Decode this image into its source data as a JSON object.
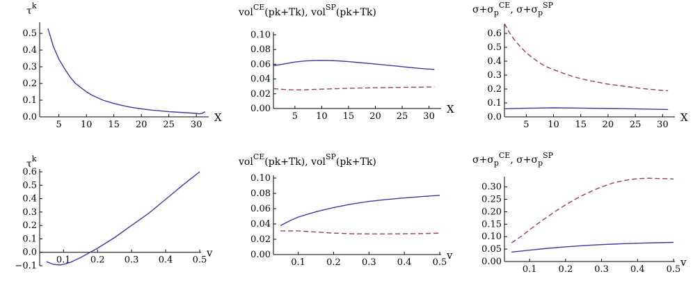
{
  "colors": {
    "solid": "#3a3a9a",
    "dashed": "#9a3a6a",
    "axis": "#000000"
  },
  "chart_data": [
    {
      "type": "line",
      "title": {
        "base": "τ",
        "sup": "k"
      },
      "xlabel": "X",
      "xlim": [
        1.5,
        32
      ],
      "ylim": [
        0,
        0.55
      ],
      "xticks": [
        5,
        10,
        15,
        20,
        25,
        30
      ],
      "xtick_labels": [
        "5",
        "10",
        "15",
        "20",
        "25",
        "30"
      ],
      "yticks": [
        0,
        0.1,
        0.2,
        0.3,
        0.4,
        0.5
      ],
      "ytick_labels": [
        "0.0",
        "0.1",
        "0.2",
        "0.3",
        "0.4",
        "0.5"
      ],
      "series": [
        {
          "style": "solid",
          "x": [
            3,
            4,
            5,
            6,
            7,
            8,
            9,
            10,
            11,
            12,
            13,
            14,
            15,
            16,
            17,
            18,
            19,
            20,
            21,
            22,
            23,
            24,
            25,
            26,
            27,
            28,
            29,
            30,
            30.5,
            31,
            31.3,
            31.6
          ],
          "y": [
            0.53,
            0.42,
            0.345,
            0.29,
            0.24,
            0.2,
            0.175,
            0.15,
            0.13,
            0.115,
            0.1,
            0.09,
            0.08,
            0.072,
            0.065,
            0.058,
            0.053,
            0.048,
            0.044,
            0.04,
            0.037,
            0.034,
            0.031,
            0.029,
            0.027,
            0.025,
            0.023,
            0.021,
            0.018,
            0.02,
            0.026,
            0.03
          ]
        }
      ]
    },
    {
      "type": "line",
      "title": {
        "a": "vol",
        "a_sup": "CE",
        "a_sub": "(pk+Tk), ",
        "b": "vol",
        "b_sup": "SP",
        "b_sub": "(pk+Tk)"
      },
      "xlabel": "X",
      "xlim": [
        1,
        32
      ],
      "ylim": [
        0,
        0.1
      ],
      "xticks": [
        5,
        10,
        15,
        20,
        25,
        30
      ],
      "xtick_labels": [
        "5",
        "10",
        "15",
        "20",
        "25",
        "30"
      ],
      "yticks": [
        0,
        0.02,
        0.04,
        0.06,
        0.08,
        0.1
      ],
      "ytick_labels": [
        "0.00",
        "0.02",
        "0.04",
        "0.06",
        "0.08",
        "0.10"
      ],
      "series": [
        {
          "style": "solid",
          "x": [
            1,
            3,
            5,
            7,
            9,
            10,
            11,
            13,
            15,
            17,
            19,
            21,
            23,
            25,
            27,
            29,
            31
          ],
          "y": [
            0.058,
            0.0605,
            0.063,
            0.0645,
            0.0652,
            0.0653,
            0.0652,
            0.0646,
            0.0636,
            0.0623,
            0.061,
            0.0596,
            0.0582,
            0.0568,
            0.0553,
            0.054,
            0.053
          ]
        },
        {
          "style": "dashed",
          "x": [
            1,
            3,
            5,
            7,
            9,
            11,
            13,
            15,
            17,
            19,
            21,
            23,
            25,
            27,
            29,
            31
          ],
          "y": [
            0.027,
            0.0258,
            0.0253,
            0.0255,
            0.026,
            0.0265,
            0.027,
            0.0274,
            0.0277,
            0.028,
            0.0283,
            0.0285,
            0.0287,
            0.0289,
            0.029,
            0.0292
          ]
        }
      ]
    },
    {
      "type": "line",
      "title": {
        "a": "σ+σ",
        "a_sub": "p",
        "a_sup": "CE",
        "sep": ",  ",
        "b": "σ+σ",
        "b_sub": "p",
        "b_sup": "SP"
      },
      "xlabel": "X",
      "xlim": [
        1,
        32
      ],
      "ylim": [
        0,
        0.65
      ],
      "xticks": [
        5,
        10,
        15,
        20,
        25,
        30
      ],
      "xtick_labels": [
        "5",
        "10",
        "15",
        "20",
        "25",
        "30"
      ],
      "yticks": [
        0,
        0.1,
        0.2,
        0.3,
        0.4,
        0.5,
        0.6
      ],
      "ytick_labels": [
        "0.0",
        "0.1",
        "0.2",
        "0.3",
        "0.4",
        "0.5",
        "0.6"
      ],
      "series": [
        {
          "style": "solid",
          "x": [
            1,
            5,
            10,
            15,
            20,
            25,
            31
          ],
          "y": [
            0.058,
            0.062,
            0.065,
            0.063,
            0.06,
            0.057,
            0.053
          ]
        },
        {
          "style": "dashed",
          "x": [
            1,
            2,
            3,
            4,
            5,
            6,
            7,
            8,
            9,
            10,
            12,
            14,
            16,
            18,
            20,
            22,
            24,
            26,
            28,
            30,
            31
          ],
          "y": [
            0.67,
            0.6,
            0.545,
            0.5,
            0.46,
            0.43,
            0.4,
            0.375,
            0.355,
            0.34,
            0.31,
            0.285,
            0.265,
            0.25,
            0.235,
            0.225,
            0.215,
            0.205,
            0.197,
            0.19,
            0.188
          ]
        }
      ]
    },
    {
      "type": "line",
      "title": {
        "base": "τ",
        "sup": "k"
      },
      "xlabel": "v",
      "xlim": [
        0.03,
        0.5
      ],
      "ylim": [
        -0.1,
        0.6
      ],
      "xticks": [
        0.1,
        0.2,
        0.3,
        0.4,
        0.5
      ],
      "xtick_labels": [
        "0.1",
        "0.2",
        "0.3",
        "0.4",
        "0.5"
      ],
      "yticks": [
        -0.1,
        0,
        0.1,
        0.2,
        0.3,
        0.4,
        0.5,
        0.6
      ],
      "ytick_labels": [
        "−0.1",
        "0.0",
        "0.1",
        "0.2",
        "0.3",
        "0.4",
        "0.5",
        "0.6"
      ],
      "series": [
        {
          "style": "solid",
          "x": [
            0.05,
            0.07,
            0.09,
            0.1,
            0.12,
            0.15,
            0.2,
            0.25,
            0.3,
            0.35,
            0.4,
            0.45,
            0.5
          ],
          "y": [
            -0.07,
            -0.09,
            -0.095,
            -0.09,
            -0.075,
            -0.04,
            0.03,
            0.11,
            0.2,
            0.29,
            0.395,
            0.5,
            0.6
          ]
        }
      ]
    },
    {
      "type": "line",
      "title": {
        "a": "vol",
        "a_sup": "CE",
        "a_sub": "(pk+Tk), ",
        "b": "vol",
        "b_sup": "SP",
        "b_sub": "(pk+Tk)"
      },
      "xlabel": "v",
      "xlim": [
        0.03,
        0.5
      ],
      "ylim": [
        0,
        0.1
      ],
      "xticks": [
        0.1,
        0.2,
        0.3,
        0.4,
        0.5
      ],
      "xtick_labels": [
        "0.1",
        "0.2",
        "0.3",
        "0.4",
        "0.5"
      ],
      "yticks": [
        0,
        0.02,
        0.04,
        0.06,
        0.08,
        0.1
      ],
      "ytick_labels": [
        "0.00",
        "0.02",
        "0.04",
        "0.06",
        "0.08",
        "0.10"
      ],
      "series": [
        {
          "style": "solid",
          "x": [
            0.05,
            0.08,
            0.1,
            0.15,
            0.2,
            0.25,
            0.3,
            0.35,
            0.4,
            0.45,
            0.5
          ],
          "y": [
            0.038,
            0.045,
            0.049,
            0.056,
            0.0615,
            0.066,
            0.0695,
            0.072,
            0.074,
            0.0758,
            0.0775
          ]
        },
        {
          "style": "dashed",
          "x": [
            0.05,
            0.1,
            0.15,
            0.2,
            0.25,
            0.3,
            0.35,
            0.4,
            0.45,
            0.5
          ],
          "y": [
            0.031,
            0.031,
            0.0295,
            0.028,
            0.0272,
            0.027,
            0.027,
            0.0272,
            0.0275,
            0.028
          ]
        }
      ]
    },
    {
      "type": "line",
      "title": {
        "a": "σ+σ",
        "a_sub": "p",
        "a_sup": "CE",
        "sep": ",  ",
        "b": "σ+σ",
        "b_sub": "p",
        "b_sup": "SP"
      },
      "xlabel": "v",
      "xlim": [
        0.03,
        0.5
      ],
      "ylim": [
        0,
        0.33
      ],
      "xticks": [
        0.1,
        0.2,
        0.3,
        0.4,
        0.5
      ],
      "xtick_labels": [
        "0.1",
        "0.2",
        "0.3",
        "0.4",
        "0.5"
      ],
      "yticks": [
        0,
        0.05,
        0.1,
        0.15,
        0.2,
        0.25,
        0.3
      ],
      "ytick_labels": [
        "0.00",
        "0.05",
        "0.10",
        "0.15",
        "0.20",
        "0.25",
        "0.30"
      ],
      "series": [
        {
          "style": "solid",
          "x": [
            0.05,
            0.1,
            0.15,
            0.2,
            0.25,
            0.3,
            0.35,
            0.4,
            0.45,
            0.5
          ],
          "y": [
            0.038,
            0.046,
            0.053,
            0.059,
            0.064,
            0.068,
            0.071,
            0.0735,
            0.0755,
            0.077
          ]
        },
        {
          "style": "dashed",
          "x": [
            0.05,
            0.08,
            0.1,
            0.13,
            0.15,
            0.18,
            0.2,
            0.23,
            0.25,
            0.28,
            0.3,
            0.33,
            0.35,
            0.38,
            0.4,
            0.43,
            0.45,
            0.48,
            0.5
          ],
          "y": [
            0.075,
            0.105,
            0.128,
            0.16,
            0.18,
            0.21,
            0.228,
            0.253,
            0.268,
            0.288,
            0.3,
            0.315,
            0.322,
            0.33,
            0.333,
            0.335,
            0.334,
            0.333,
            0.332
          ]
        }
      ]
    }
  ]
}
